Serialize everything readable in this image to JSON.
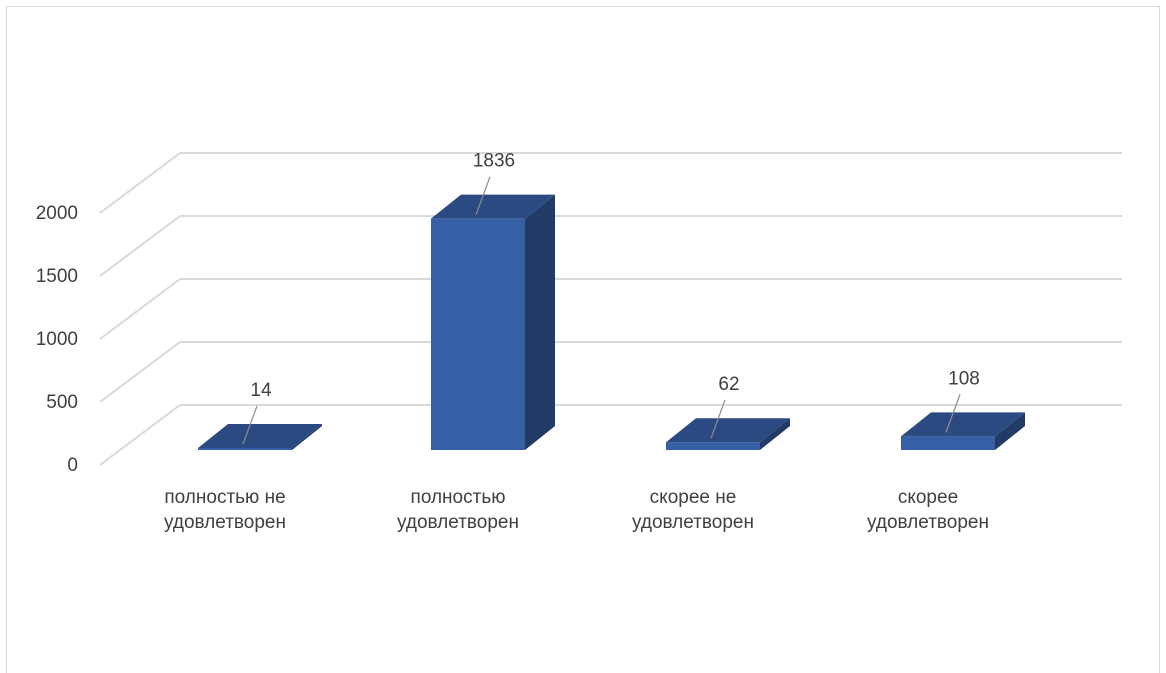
{
  "chart_data": {
    "type": "bar",
    "title": "",
    "xlabel": "",
    "ylabel": "",
    "categories": [
      [
        "полностью не",
        "удовлетворен"
      ],
      [
        "полностью",
        "удовлетворен"
      ],
      [
        "скорее не",
        "удовлетворен"
      ],
      [
        "скорее",
        "удовлетворен"
      ]
    ],
    "values": [
      14,
      1836,
      62,
      108
    ],
    "data_labels": [
      "14",
      "1836",
      "62",
      "108"
    ],
    "yticks": [
      0,
      500,
      1000,
      1500,
      2000
    ],
    "ytick_labels": [
      "0",
      "500",
      "1000",
      "1500",
      "2000"
    ],
    "ylim": [
      0,
      2000
    ],
    "grid": true,
    "legend": "none",
    "style": "3d-column",
    "colors": {
      "bar_front": "#365fa6",
      "bar_top": "#2c4a82",
      "bar_side": "#223a66",
      "gridline": "#d9d9d9",
      "text": "#404040",
      "leader_line": "#8c8c8c"
    }
  }
}
